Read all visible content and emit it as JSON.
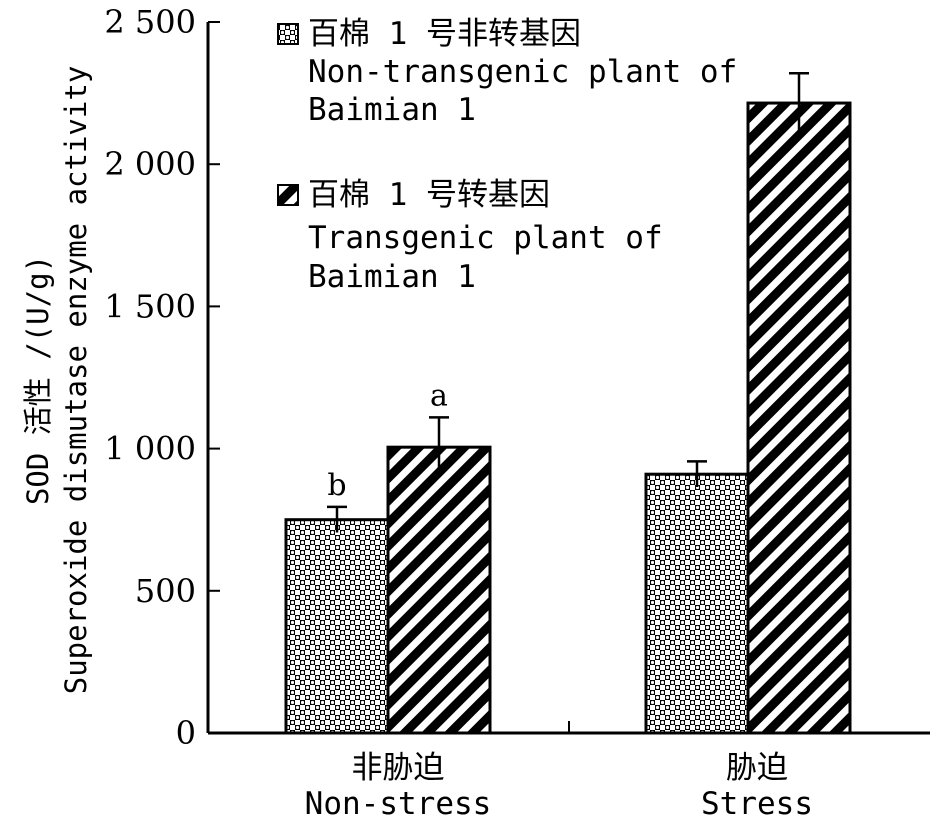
{
  "chart_data": {
    "type": "bar",
    "ylabel_cn": "SOD 活性 /(U/g)",
    "ylabel_en": "Superoxide dismutase enzyme activity",
    "ylim": [
      0,
      2500
    ],
    "yticks": [
      0,
      500,
      1000,
      1500,
      2000,
      2500
    ],
    "ytick_labels": [
      "0",
      "500",
      "1 000",
      "1 500",
      "2 000",
      "2 500"
    ],
    "categories": [
      {
        "cn": "非胁迫",
        "en": "Non-stress"
      },
      {
        "cn": "胁迫",
        "en": "Stress"
      }
    ],
    "series": [
      {
        "name_cn": "百棉 1 号非转基因",
        "name_en_line1": "Non-transgenic plant of",
        "name_en_line2": "Baimian 1",
        "pattern": "dotted-checker",
        "values": [
          750,
          910
        ],
        "errors": [
          45,
          45
        ],
        "labels": [
          "b",
          ""
        ]
      },
      {
        "name_cn": "百棉 1 号转基因",
        "name_en_line1": "Transgenic plant of",
        "name_en_line2": "Baimian 1",
        "pattern": "diagonal-stripes",
        "values": [
          1005,
          2215
        ],
        "errors": [
          105,
          105
        ],
        "labels": [
          "a",
          ""
        ]
      }
    ],
    "grid": false,
    "legend_position": "top-left inside"
  }
}
